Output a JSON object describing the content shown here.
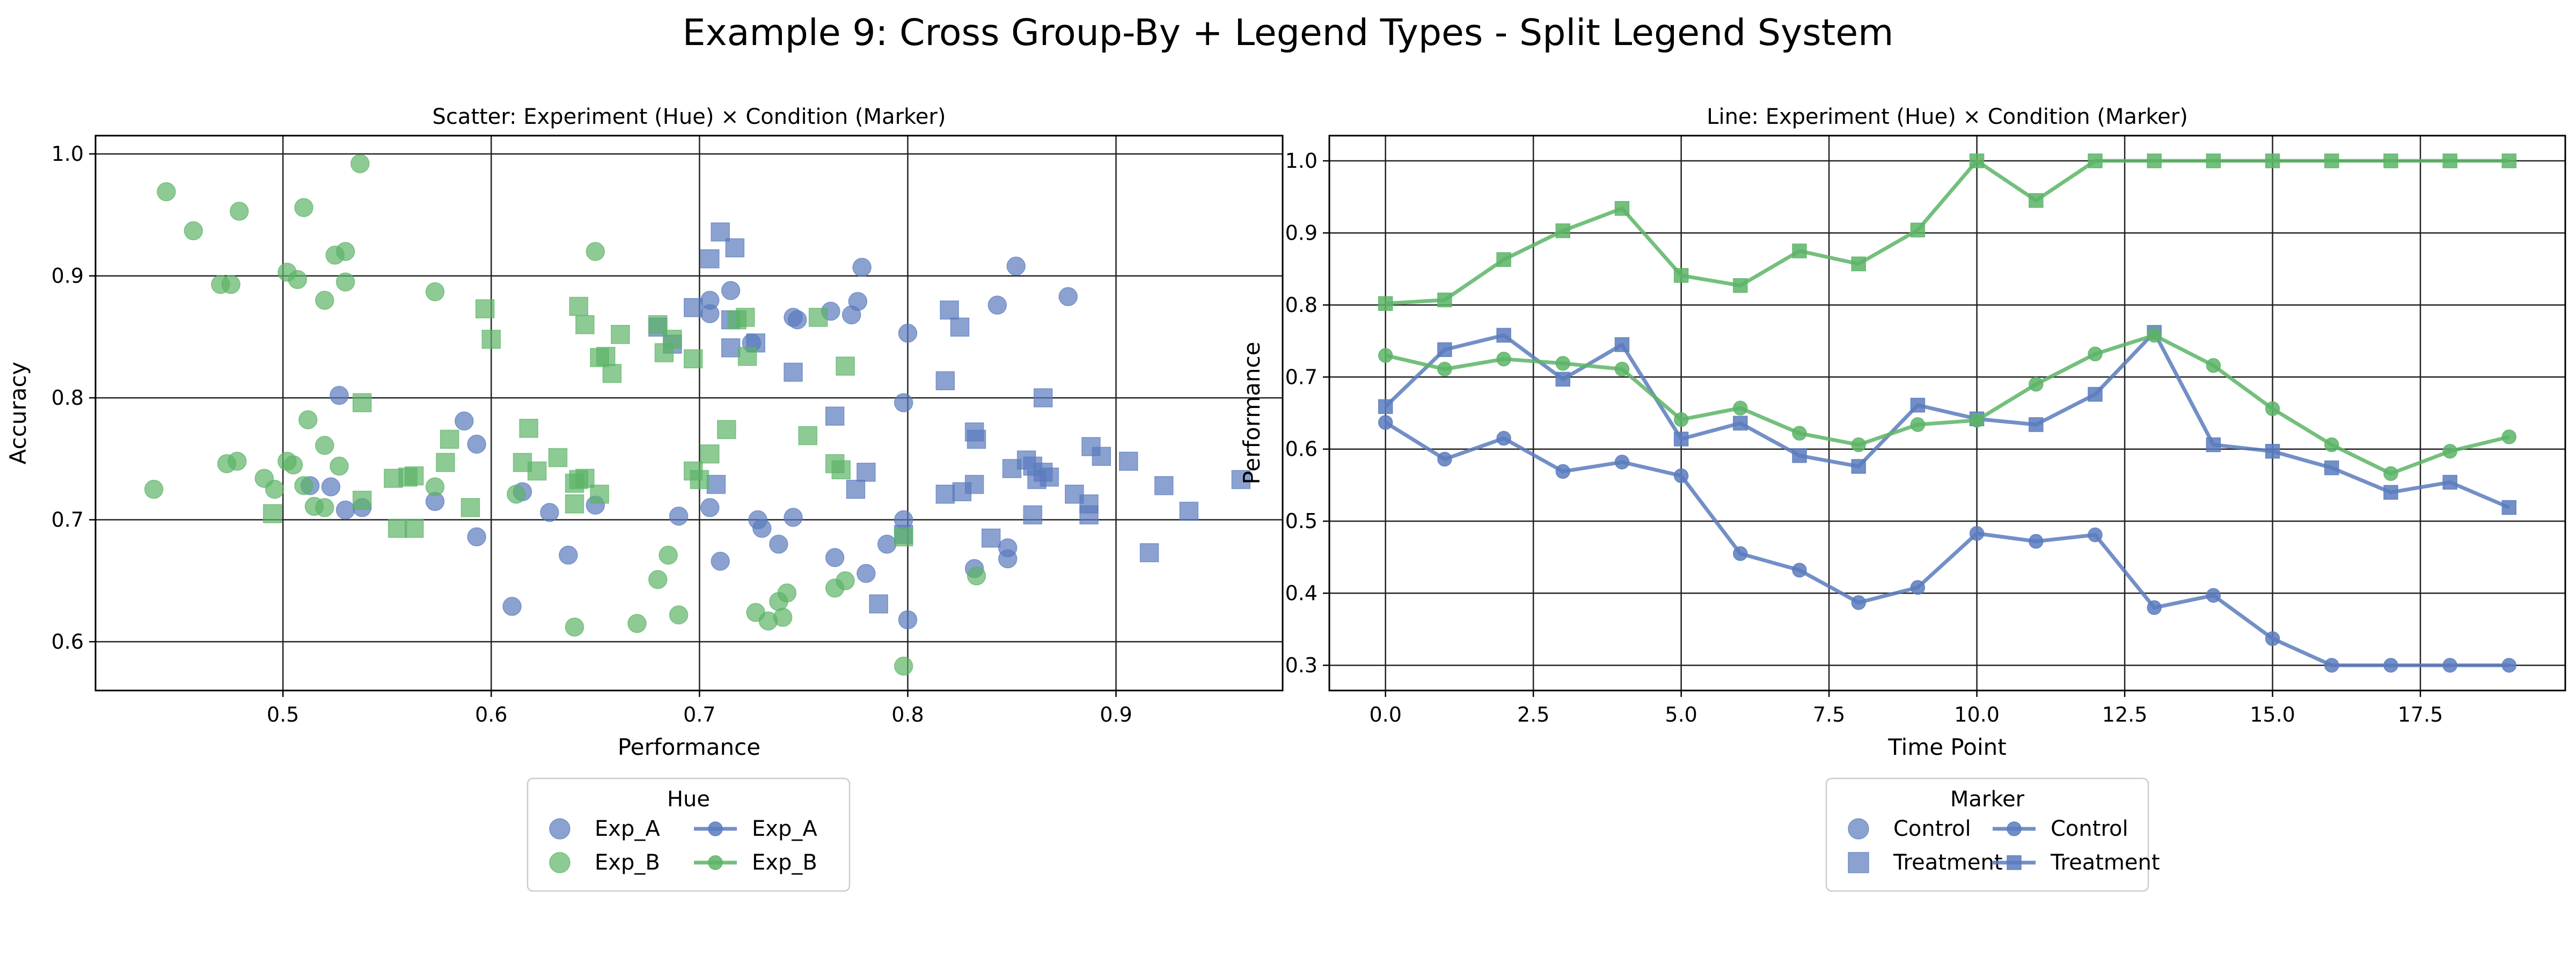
{
  "suptitle": "Example 9: Cross Group-By + Legend Types - Split Legend System",
  "colors": {
    "Exp_A": "#5a7bbd",
    "Exp_B": "#5cb466"
  },
  "chart_data": [
    {
      "type": "scatter",
      "title": "Scatter: Experiment (Hue) × Condition (Marker)",
      "xlabel": "Performance",
      "ylabel": "Accuracy",
      "xlim": [
        0.41,
        0.98
      ],
      "ylim": [
        0.56,
        1.015
      ],
      "xticks": [
        0.5,
        0.6,
        0.7,
        0.8,
        0.9
      ],
      "xtick_labels": [
        "0.5",
        "0.6",
        "0.7",
        "0.8",
        "0.9"
      ],
      "yticks": [
        0.6,
        0.7,
        0.8,
        0.9,
        1.0
      ],
      "ytick_labels": [
        "0.6",
        "0.7",
        "0.8",
        "0.9",
        "1.0"
      ],
      "grid": true,
      "series": [
        {
          "hue": "Exp_A",
          "marker": "Control",
          "points": [
            [
              0.527,
              0.802
            ],
            [
              0.587,
              0.781
            ],
            [
              0.593,
              0.762
            ],
            [
              0.573,
              0.715
            ],
            [
              0.593,
              0.686
            ],
            [
              0.53,
              0.708
            ],
            [
              0.538,
              0.71
            ],
            [
              0.513,
              0.728
            ],
            [
              0.523,
              0.727
            ],
            [
              0.61,
              0.629
            ],
            [
              0.615,
              0.723
            ],
            [
              0.628,
              0.706
            ],
            [
              0.637,
              0.671
            ],
            [
              0.65,
              0.712
            ],
            [
              0.69,
              0.703
            ],
            [
              0.705,
              0.71
            ],
            [
              0.71,
              0.666
            ],
            [
              0.728,
              0.7
            ],
            [
              0.73,
              0.693
            ],
            [
              0.738,
              0.68
            ],
            [
              0.745,
              0.702
            ],
            [
              0.705,
              0.88
            ],
            [
              0.705,
              0.869
            ],
            [
              0.715,
              0.888
            ],
            [
              0.745,
              0.866
            ],
            [
              0.747,
              0.864
            ],
            [
              0.725,
              0.845
            ],
            [
              0.763,
              0.871
            ],
            [
              0.773,
              0.868
            ],
            [
              0.776,
              0.879
            ],
            [
              0.778,
              0.907
            ],
            [
              0.8,
              0.853
            ],
            [
              0.843,
              0.876
            ],
            [
              0.852,
              0.908
            ],
            [
              0.877,
              0.883
            ],
            [
              0.798,
              0.796
            ],
            [
              0.798,
              0.7
            ],
            [
              0.78,
              0.656
            ],
            [
              0.765,
              0.669
            ],
            [
              0.79,
              0.68
            ],
            [
              0.8,
              0.618
            ],
            [
              0.832,
              0.66
            ],
            [
              0.848,
              0.677
            ],
            [
              0.848,
              0.668
            ]
          ]
        },
        {
          "hue": "Exp_A",
          "marker": "Treatment",
          "points": [
            [
              0.705,
              0.914
            ],
            [
              0.71,
              0.936
            ],
            [
              0.717,
              0.923
            ],
            [
              0.697,
              0.874
            ],
            [
              0.715,
              0.864
            ],
            [
              0.715,
              0.841
            ],
            [
              0.727,
              0.845
            ],
            [
              0.68,
              0.858
            ],
            [
              0.687,
              0.844
            ],
            [
              0.745,
              0.821
            ],
            [
              0.765,
              0.785
            ],
            [
              0.775,
              0.725
            ],
            [
              0.78,
              0.739
            ],
            [
              0.786,
              0.631
            ],
            [
              0.708,
              0.729
            ],
            [
              0.798,
              0.688
            ],
            [
              0.818,
              0.814
            ],
            [
              0.82,
              0.872
            ],
            [
              0.825,
              0.858
            ],
            [
              0.818,
              0.721
            ],
            [
              0.826,
              0.723
            ],
            [
              0.832,
              0.729
            ],
            [
              0.832,
              0.772
            ],
            [
              0.833,
              0.766
            ],
            [
              0.84,
              0.685
            ],
            [
              0.85,
              0.742
            ],
            [
              0.857,
              0.749
            ],
            [
              0.86,
              0.744
            ],
            [
              0.865,
              0.739
            ],
            [
              0.862,
              0.733
            ],
            [
              0.868,
              0.735
            ],
            [
              0.865,
              0.8
            ],
            [
              0.86,
              0.704
            ],
            [
              0.88,
              0.721
            ],
            [
              0.887,
              0.713
            ],
            [
              0.887,
              0.704
            ],
            [
              0.888,
              0.76
            ],
            [
              0.893,
              0.752
            ],
            [
              0.906,
              0.748
            ],
            [
              0.916,
              0.673
            ],
            [
              0.923,
              0.728
            ],
            [
              0.935,
              0.707
            ],
            [
              0.96,
              0.733
            ]
          ]
        },
        {
          "hue": "Exp_B",
          "marker": "Control",
          "points": [
            [
              0.438,
              0.725
            ],
            [
              0.444,
              0.969
            ],
            [
              0.457,
              0.937
            ],
            [
              0.479,
              0.953
            ],
            [
              0.47,
              0.893
            ],
            [
              0.475,
              0.893
            ],
            [
              0.502,
              0.903
            ],
            [
              0.507,
              0.897
            ],
            [
              0.51,
              0.956
            ],
            [
              0.52,
              0.88
            ],
            [
              0.525,
              0.917
            ],
            [
              0.53,
              0.92
            ],
            [
              0.53,
              0.895
            ],
            [
              0.537,
              0.992
            ],
            [
              0.512,
              0.782
            ],
            [
              0.52,
              0.761
            ],
            [
              0.473,
              0.746
            ],
            [
              0.478,
              0.748
            ],
            [
              0.491,
              0.734
            ],
            [
              0.496,
              0.725
            ],
            [
              0.502,
              0.748
            ],
            [
              0.505,
              0.745
            ],
            [
              0.51,
              0.728
            ],
            [
              0.515,
              0.711
            ],
            [
              0.52,
              0.71
            ],
            [
              0.527,
              0.744
            ],
            [
              0.573,
              0.727
            ],
            [
              0.573,
              0.887
            ],
            [
              0.65,
              0.92
            ],
            [
              0.612,
              0.721
            ],
            [
              0.64,
              0.612
            ],
            [
              0.67,
              0.615
            ],
            [
              0.68,
              0.651
            ],
            [
              0.685,
              0.671
            ],
            [
              0.69,
              0.622
            ],
            [
              0.727,
              0.624
            ],
            [
              0.733,
              0.617
            ],
            [
              0.738,
              0.633
            ],
            [
              0.74,
              0.62
            ],
            [
              0.742,
              0.64
            ],
            [
              0.765,
              0.644
            ],
            [
              0.77,
              0.65
            ],
            [
              0.798,
              0.58
            ],
            [
              0.833,
              0.654
            ]
          ]
        },
        {
          "hue": "Exp_B",
          "marker": "Treatment",
          "points": [
            [
              0.495,
              0.705
            ],
            [
              0.538,
              0.796
            ],
            [
              0.538,
              0.716
            ],
            [
              0.553,
              0.734
            ],
            [
              0.56,
              0.735
            ],
            [
              0.563,
              0.736
            ],
            [
              0.555,
              0.693
            ],
            [
              0.563,
              0.693
            ],
            [
              0.578,
              0.747
            ],
            [
              0.58,
              0.766
            ],
            [
              0.59,
              0.71
            ],
            [
              0.597,
              0.873
            ],
            [
              0.6,
              0.848
            ],
            [
              0.618,
              0.775
            ],
            [
              0.615,
              0.747
            ],
            [
              0.622,
              0.74
            ],
            [
              0.632,
              0.751
            ],
            [
              0.64,
              0.73
            ],
            [
              0.642,
              0.733
            ],
            [
              0.645,
              0.734
            ],
            [
              0.64,
              0.713
            ],
            [
              0.652,
              0.721
            ],
            [
              0.642,
              0.875
            ],
            [
              0.645,
              0.86
            ],
            [
              0.652,
              0.833
            ],
            [
              0.655,
              0.834
            ],
            [
              0.658,
              0.82
            ],
            [
              0.662,
              0.852
            ],
            [
              0.68,
              0.86
            ],
            [
              0.683,
              0.837
            ],
            [
              0.687,
              0.848
            ],
            [
              0.697,
              0.832
            ],
            [
              0.697,
              0.74
            ],
            [
              0.7,
              0.733
            ],
            [
              0.705,
              0.754
            ],
            [
              0.713,
              0.774
            ],
            [
              0.718,
              0.864
            ],
            [
              0.722,
              0.866
            ],
            [
              0.723,
              0.834
            ],
            [
              0.752,
              0.769
            ],
            [
              0.757,
              0.866
            ],
            [
              0.765,
              0.746
            ],
            [
              0.768,
              0.741
            ],
            [
              0.77,
              0.826
            ],
            [
              0.798,
              0.686
            ]
          ]
        }
      ],
      "legend": {
        "title": "Hue",
        "entries": [
          {
            "label": "Exp_A",
            "hue": "Exp_A",
            "style": "scatter"
          },
          {
            "label": "Exp_B",
            "hue": "Exp_B",
            "style": "scatter"
          },
          {
            "label": "Exp_A",
            "hue": "Exp_A",
            "style": "line"
          },
          {
            "label": "Exp_B",
            "hue": "Exp_B",
            "style": "line"
          }
        ],
        "placement": "below"
      }
    },
    {
      "type": "line",
      "title": "Line: Experiment (Hue) × Condition (Marker)",
      "xlabel": "Time Point",
      "ylabel": "Performance",
      "xlim": [
        -0.95,
        19.95
      ],
      "ylim": [
        0.265,
        1.035
      ],
      "xticks": [
        0,
        2.5,
        5,
        7.5,
        10,
        12.5,
        15,
        17.5
      ],
      "xtick_labels": [
        "0.0",
        "2.5",
        "5.0",
        "7.5",
        "10.0",
        "12.5",
        "15.0",
        "17.5"
      ],
      "yticks": [
        0.3,
        0.4,
        0.5,
        0.6,
        0.7,
        0.8,
        0.9,
        1.0
      ],
      "ytick_labels": [
        "0.3",
        "0.4",
        "0.5",
        "0.6",
        "0.7",
        "0.8",
        "0.9",
        "1.0"
      ],
      "grid": true,
      "x": [
        0,
        1,
        2,
        3,
        4,
        5,
        6,
        7,
        8,
        9,
        10,
        11,
        12,
        13,
        14,
        15,
        16,
        17,
        18,
        19
      ],
      "series": [
        {
          "hue": "Exp_A",
          "marker": "Control",
          "values": [
            0.637,
            0.586,
            0.615,
            0.569,
            0.582,
            0.563,
            0.455,
            0.432,
            0.387,
            0.408,
            0.483,
            0.472,
            0.481,
            0.38,
            0.397,
            0.337,
            0.3,
            0.3,
            0.3,
            0.3
          ]
        },
        {
          "hue": "Exp_A",
          "marker": "Treatment",
          "values": [
            0.659,
            0.738,
            0.758,
            0.697,
            0.745,
            0.614,
            0.636,
            0.591,
            0.576,
            0.661,
            0.642,
            0.634,
            0.676,
            0.762,
            0.606,
            0.597,
            0.574,
            0.54,
            0.554,
            0.519
          ]
        },
        {
          "hue": "Exp_B",
          "marker": "Control",
          "values": [
            0.73,
            0.711,
            0.725,
            0.719,
            0.711,
            0.641,
            0.657,
            0.622,
            0.606,
            0.634,
            0.64,
            0.69,
            0.732,
            0.758,
            0.716,
            0.656,
            0.606,
            0.566,
            0.597,
            0.617
          ]
        },
        {
          "hue": "Exp_B",
          "marker": "Treatment",
          "values": [
            0.802,
            0.807,
            0.863,
            0.903,
            0.934,
            0.841,
            0.827,
            0.875,
            0.857,
            0.904,
            1.0,
            0.945,
            1.0,
            1.0,
            1.0,
            1.0,
            1.0,
            1.0,
            1.0,
            1.0
          ]
        }
      ],
      "legend": {
        "title": "Marker",
        "entries": [
          {
            "label": "Control",
            "marker": "Control",
            "style": "scatter"
          },
          {
            "label": "Treatment",
            "marker": "Treatment",
            "style": "scatter"
          },
          {
            "label": "Control",
            "marker": "Control",
            "style": "line"
          },
          {
            "label": "Treatment",
            "marker": "Treatment",
            "style": "line"
          }
        ],
        "placement": "below"
      }
    }
  ]
}
